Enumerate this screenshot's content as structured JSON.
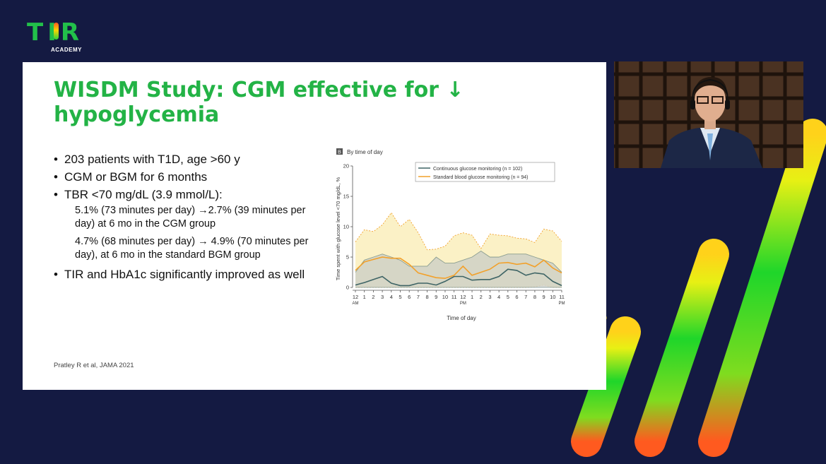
{
  "logo": {
    "text": "TIR",
    "subtitle": "ACADEMY"
  },
  "slide": {
    "title": "WISDM Study: CGM effective for ↓ hypoglycemia",
    "bullets": [
      "203 patients with T1D, age >60 y",
      "CGM or BGM for 6 months",
      "TBR <70 mg/dL (3.9 mmol/L):"
    ],
    "sub_bullets": [
      "5.1% (73 minutes per day) →2.7% (39 minutes per day) at 6 mo in the CGM group",
      "4.7% (68 minutes per day) → 4.9% (70 minutes per day), at 6 mo in the standard BGM group"
    ],
    "last_bullet": "TIR and HbA1c significantly improved as well",
    "citation": "Pratley R et al, JAMA 2021"
  },
  "chart_data": {
    "type": "line",
    "panel_label": "B",
    "panel_title": "By time of day",
    "xlabel": "Time of day",
    "ylabel": "Time spent with glucose level <70 mg/dL, %",
    "ylim": [
      0,
      20
    ],
    "yticks": [
      "0",
      "5",
      "10",
      "15",
      "20"
    ],
    "x_ticks": [
      "12",
      "1",
      "2",
      "3",
      "4",
      "5",
      "6",
      "7",
      "8",
      "9",
      "10",
      "11",
      "12",
      "1",
      "2",
      "3",
      "4",
      "5",
      "6",
      "7",
      "8",
      "9",
      "10",
      "11"
    ],
    "x_sub_labels": [
      {
        "index": 0,
        "text": "AM"
      },
      {
        "index": 12,
        "text": "PM"
      },
      {
        "index": 23,
        "text": "PM"
      }
    ],
    "legend": [
      {
        "name": "Continuous glucose monitoring (n = 102)",
        "color": "#3e6465"
      },
      {
        "name": "Standard blood glucose monitoring (n = 94)",
        "color": "#f2a12b"
      }
    ],
    "legend_position": "top-right",
    "series": [
      {
        "name": "Continuous glucose monitoring (n = 102)",
        "color": "#3e6465",
        "values": [
          0.4,
          0.8,
          1.3,
          1.8,
          0.7,
          0.3,
          0.3,
          0.7,
          0.7,
          0.4,
          1.0,
          1.8,
          1.8,
          1.2,
          1.3,
          1.3,
          1.8,
          3.0,
          2.8,
          2.0,
          2.4,
          2.2,
          1.0,
          0.3
        ],
        "upper": [
          2.5,
          4.5,
          5.0,
          5.5,
          5.0,
          4.5,
          3.5,
          3.5,
          3.5,
          5.0,
          4.0,
          4.0,
          4.5,
          5.0,
          6.0,
          5.0,
          5.0,
          5.5,
          5.5,
          5.5,
          5.0,
          4.5,
          4.0,
          2.5
        ],
        "lower": [
          0,
          0,
          0,
          0,
          0,
          0,
          0,
          0,
          0,
          0,
          0,
          0,
          0,
          0,
          0,
          0,
          0,
          0,
          0,
          0,
          0,
          0,
          0,
          0
        ]
      },
      {
        "name": "Standard blood glucose monitoring (n = 94)",
        "color": "#f2a12b",
        "values": [
          2.8,
          4.2,
          4.6,
          5.0,
          4.8,
          4.8,
          3.8,
          2.4,
          2.0,
          1.6,
          1.5,
          2.0,
          3.5,
          2.0,
          2.5,
          3.0,
          4.0,
          4.1,
          3.8,
          4.0,
          3.4,
          4.5,
          3.2,
          2.4
        ],
        "upper": [
          7.5,
          9.5,
          9.2,
          10.3,
          12.3,
          10.0,
          11.2,
          9.0,
          6.2,
          6.3,
          6.8,
          8.5,
          9.0,
          8.6,
          6.4,
          8.8,
          8.6,
          8.5,
          8.1,
          8.0,
          7.4,
          9.6,
          9.3,
          7.6
        ],
        "lower": [
          0,
          0,
          0,
          0,
          0,
          0,
          0,
          0,
          0,
          0,
          0,
          0,
          0,
          0,
          0,
          0,
          0,
          0,
          0,
          0,
          0.1,
          0.4,
          0,
          0
        ]
      }
    ]
  },
  "colors": {
    "background": "#141a42",
    "title_green": "#23b346",
    "cgm_line": "#3e6465",
    "bgm_line": "#f2a12b",
    "cgm_ci_fill": "#c9ccc6",
    "bgm_ci_fill": "#fbf0c0"
  },
  "webcam": {
    "icon": "presenter-video-icon"
  },
  "decor": {
    "icon": "gradient-stripes-icon"
  }
}
